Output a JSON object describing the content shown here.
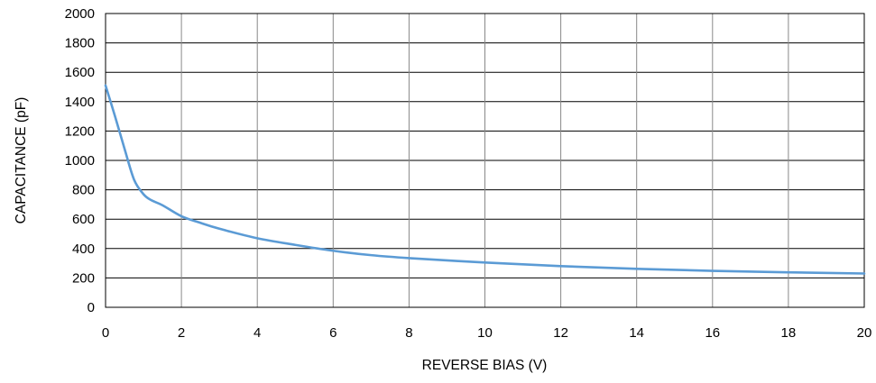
{
  "chart_data": {
    "type": "line",
    "title": "",
    "xlabel": "REVERSE BIAS (V)",
    "ylabel": "CAPACITANCE (pF)",
    "xlim": [
      0,
      20
    ],
    "ylim": [
      0,
      2000
    ],
    "x_ticks": [
      0,
      2,
      4,
      6,
      8,
      10,
      12,
      14,
      16,
      18,
      20
    ],
    "y_ticks": [
      0,
      200,
      400,
      600,
      800,
      1000,
      1200,
      1400,
      1600,
      1800,
      2000
    ],
    "grid": true,
    "legend": "none",
    "series": [
      {
        "color": "#5b9bd5",
        "x": [
          0,
          0.25,
          0.5,
          0.75,
          1.0,
          1.2,
          1.5,
          2.0,
          2.5,
          3.0,
          4.0,
          5.0,
          6.0,
          7.0,
          8.0,
          10.0,
          12.0,
          14.0,
          16.0,
          18.0,
          20.0
        ],
        "y": [
          1510,
          1300,
          1080,
          870,
          770,
          730,
          695,
          620,
          575,
          535,
          470,
          425,
          385,
          355,
          335,
          305,
          280,
          262,
          248,
          238,
          230
        ]
      }
    ]
  }
}
